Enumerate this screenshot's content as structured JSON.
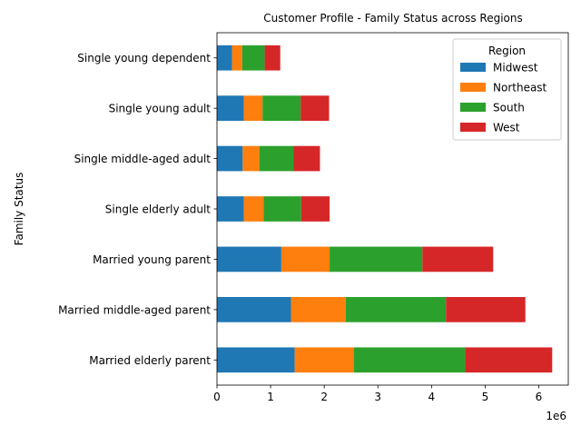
{
  "chart_data": {
    "type": "bar",
    "orientation": "horizontal",
    "stacked": true,
    "title": "Customer Profile - Family Status across Regions",
    "xlabel": "",
    "ylabel": "Family Status",
    "x_scale_label": "1e6",
    "xlim": [
      0,
      6550000
    ],
    "xticks": [
      0,
      1,
      2,
      3,
      4,
      5,
      6
    ],
    "grid": false,
    "legend": {
      "title": "Region",
      "placement": "top-right"
    },
    "categories": [
      "Married elderly parent",
      "Married middle-aged parent",
      "Married young parent",
      "Single elderly adult",
      "Single middle-aged adult",
      "Single young adult",
      "Single young dependent"
    ],
    "series": [
      {
        "name": "Midwest",
        "color": "#1f77b4",
        "values": [
          1450000,
          1380000,
          1200000,
          500000,
          480000,
          500000,
          280000
        ]
      },
      {
        "name": "Northeast",
        "color": "#ff7f0e",
        "values": [
          1100000,
          1020000,
          900000,
          370000,
          310000,
          350000,
          190000
        ]
      },
      {
        "name": "South",
        "color": "#2ca02c",
        "values": [
          2080000,
          1870000,
          1730000,
          700000,
          640000,
          710000,
          420000
        ]
      },
      {
        "name": "West",
        "color": "#d62728",
        "values": [
          1620000,
          1480000,
          1320000,
          530000,
          490000,
          530000,
          290000
        ]
      }
    ]
  }
}
